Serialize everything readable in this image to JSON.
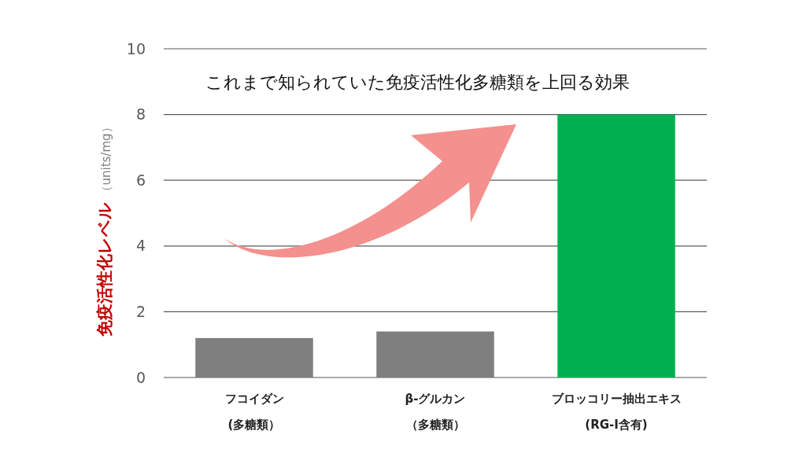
{
  "chart_data": {
    "type": "bar",
    "categories": [
      "フコイダン(多糖類）",
      "β-グルカン（多糖類）",
      "ブロッコリー抽出エキス(RG-I含有)"
    ],
    "values": [
      1.2,
      1.4,
      8
    ],
    "colors": [
      "#7f7f7f",
      "#7f7f7f",
      "#00b050"
    ],
    "ylabel": "免疫活性化レベル（units/mg）",
    "ylim": [
      0,
      10
    ],
    "yticks": [
      0,
      2,
      4,
      6,
      8,
      10
    ],
    "grid": "y",
    "annotations": [
      "これまで知られていた免疫活性化多糖類を上回る効果"
    ]
  }
}
